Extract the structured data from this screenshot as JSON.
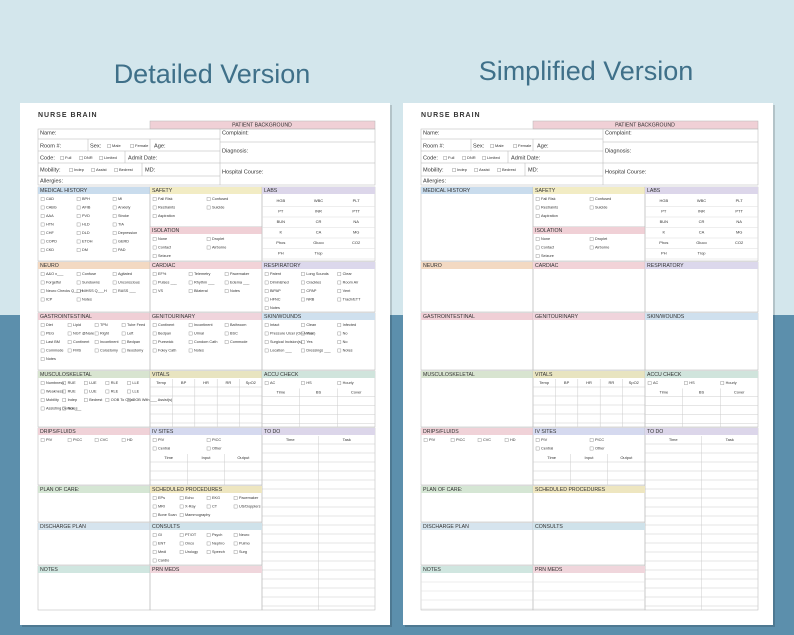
{
  "headings": [
    "Detailed Version",
    "Simplified Version"
  ],
  "pages": [
    {
      "title": "NURSE BRAIN",
      "background": {
        "header": "PATIENT BACKGROUND",
        "fields": [
          "Name:",
          "Complaint:",
          "Room #:",
          "Sex:",
          "Male",
          "Female",
          "Age:",
          "Diagnosis:",
          "Code:",
          "Full",
          "DNR",
          "Limited",
          "Admit Date:",
          "Mobility:",
          "Indep",
          "Assist",
          "Bedrest",
          "MD:",
          "Hospital Course:",
          "Allergies:"
        ]
      },
      "sections": [
        {
          "label": "MEDICAL HISTORY",
          "color": "#c9dced",
          "options": [
            "CAD",
            "BPH",
            "MI",
            "CABG",
            "AFIB",
            "Anxiety",
            "AAA",
            "PVD",
            "Stroke",
            "HTN",
            "HLD",
            "TIA",
            "CHF",
            "DLD",
            "Depression",
            "COPD",
            "ETOH",
            "GERD",
            "CKD",
            "DM",
            "PAD"
          ]
        },
        {
          "label": "SAFETY",
          "color": "#f2ecc4",
          "options": [
            "Fall Risk",
            "Confused",
            "Restraints",
            "Suicide",
            "Aspiration"
          ]
        },
        {
          "label": "ISOLATION",
          "color": "#f0d0d6",
          "options": [
            "None",
            "Droplet",
            "Contact",
            "Airborne",
            "Seizure"
          ]
        },
        {
          "label": "LABS",
          "color": "#dcd6ea",
          "cells": [
            "HGB",
            "WBC",
            "PLT",
            "PT",
            "INR",
            "PTT",
            "BUN",
            "CR",
            "NA",
            "K",
            "CA",
            "MG",
            "Phos",
            "Gluco",
            "CO2",
            "PH",
            "Trop"
          ]
        },
        {
          "label": "NEURO",
          "color": "#f3d9c2",
          "options": [
            "A&O x___",
            "Confuse",
            "Agitated",
            "Forgetful",
            "Sundowns",
            "Unconscious",
            "Neuro Checks Q___H",
            "NIHSS Q___H",
            "RASS ___",
            "ICP",
            "Notes"
          ]
        },
        {
          "label": "CARDIAC",
          "color": "#f2d3d8",
          "options": [
            "EF%",
            "Telemetry",
            "Pacemaker",
            "Pulses ___",
            "Rhythm ___",
            "Edema ___",
            "VS",
            "Bilateral",
            "Notes"
          ]
        },
        {
          "label": "RESPIRATORY",
          "color": "#dcd8ec",
          "options": [
            "Patent",
            "Long Sounds",
            "Clear",
            "Diminished",
            "Crackles",
            "Room Air",
            "BiPAP",
            "CPAP",
            "Vent",
            "HFNC",
            "NRB",
            "Trach/ETT",
            "Notes"
          ]
        },
        {
          "label": "GASTROINTESTINAL",
          "color": "#f0cfd6",
          "options": [
            "Diet",
            "Lipid",
            "TPN",
            "Tube Feed",
            "PEG",
            "NGT @Nare",
            "Right",
            "Left",
            "Last BM",
            "Continent",
            "Incontinent",
            "Bedpan",
            "Commode",
            "FMS",
            "Colostomy",
            "Ileostomy",
            "Notes"
          ]
        },
        {
          "label": "GENITOURINARY",
          "color": "#f0d4dc",
          "options": [
            "Continent",
            "Incontinent",
            "Bathroom",
            "Bedpan",
            "Urinal",
            "BSC",
            "Purewick",
            "Condom Cath",
            "Commode",
            "Foley Cath",
            "Notes"
          ]
        },
        {
          "label": "SKIN/WOUNDS",
          "color": "#cfe0ee",
          "options": [
            "Intact",
            "Clean",
            "Infected",
            "Pressure Ulcer (On Arrival)",
            "Yes",
            "No",
            "Surgical Incision(s)",
            "Yes",
            "No",
            "Location ___",
            "Dressings ___",
            "Notes"
          ]
        },
        {
          "label": "MUSCULOSKELETAL",
          "color": "#d8e4d0",
          "options": [
            "Numbness",
            "RUE",
            "LUE",
            "RLE",
            "LLE",
            "Weakness",
            "RUE",
            "LUE",
            "RLE",
            "LLE",
            "Mobility",
            "Indep",
            "Bedrest",
            "OOB To Chair",
            "OOB With ___ Assist(s)",
            "Assisting Device ___",
            "Notes"
          ]
        },
        {
          "label": "VITALS",
          "color": "#e8e4c0",
          "columns": [
            "Temp",
            "BP",
            "HR",
            "RR",
            "SpO2"
          ]
        },
        {
          "label": "ACCU CHECK",
          "color": "#d0e4dc",
          "options": [
            "AC",
            "HS",
            "Hourly"
          ],
          "columns": [
            "Time",
            "BS",
            "Cover"
          ]
        },
        {
          "label": "DRIPS/FLUIDS",
          "color": "#f0d2d8",
          "options": [
            "PIV",
            "PICC",
            "CVC",
            "HD"
          ]
        },
        {
          "label": "IV SITES",
          "color": "#d5d9ef",
          "options": [
            "PIV",
            "PICC",
            "Central",
            "Other"
          ],
          "columns": [
            "Time",
            "Input",
            "Output"
          ]
        },
        {
          "label": "TO DO",
          "color": "#dcd6ea",
          "columns": [
            "Time",
            "Task"
          ]
        },
        {
          "label": "PLAN OF CARE:",
          "color": "#d5e6d4"
        },
        {
          "label": "SCHEDULED PROCEDURES",
          "color": "#eee6c0",
          "options": [
            "EPs",
            "Echo",
            "EKG",
            "Pacemaker",
            "MRI",
            "X-Ray",
            "CT",
            "US/Dopplers",
            "Bone Scan",
            "Mammography"
          ]
        },
        {
          "label": "DISCHARGE PLAN",
          "color": "#d6e4ee"
        },
        {
          "label": "CONSULTS",
          "color": "#cfe2ea",
          "options": [
            "GI",
            "PT/OT",
            "Psych",
            "Neuro",
            "ENT",
            "Onco",
            "Nephro",
            "Pulmo",
            "Medi",
            "Urology",
            "Speech",
            "Surg",
            "Cardio"
          ]
        },
        {
          "label": "NOTES",
          "color": "#d0e6e0"
        },
        {
          "label": "PRN MEDS",
          "color": "#f0d6dc"
        }
      ]
    },
    {
      "title": "NURSE BRAIN",
      "background": {
        "header": "PATIENT BACKGROUND",
        "fields": [
          "Name:",
          "Complaint:",
          "Room #:",
          "Sex:",
          "Male",
          "Female",
          "Age:",
          "Diagnosis:",
          "Code:",
          "Full",
          "DNR",
          "Limited",
          "Admit Date:",
          "Mobility:",
          "Indep",
          "Assist",
          "Bedrest",
          "MD:",
          "Hospital Course:",
          "Allergies:"
        ]
      },
      "sections": [
        {
          "label": "MEDICAL HISTORY",
          "color": "#c9dced"
        },
        {
          "label": "SAFETY",
          "color": "#f2ecc4",
          "options": [
            "Fall Risk",
            "Confused",
            "Restraints",
            "Suicide",
            "Aspiration"
          ]
        },
        {
          "label": "ISOLATION",
          "color": "#f0d0d6",
          "options": [
            "None",
            "Droplet",
            "Contact",
            "Airborne",
            "Seizure"
          ]
        },
        {
          "label": "LABS",
          "color": "#dcd6ea",
          "cells": [
            "HGB",
            "WBC",
            "PLT",
            "PT",
            "INR",
            "PTT",
            "BUN",
            "CR",
            "NA",
            "K",
            "CA",
            "MG",
            "Phos",
            "Gluco",
            "CO2",
            "PH",
            "Trop"
          ]
        },
        {
          "label": "NEURO",
          "color": "#f3d9c2"
        },
        {
          "label": "CARDIAC",
          "color": "#f2d3d8"
        },
        {
          "label": "RESPIRATORY",
          "color": "#dcd8ec"
        },
        {
          "label": "GASTROINTESTINAL",
          "color": "#f0cfd6"
        },
        {
          "label": "GENITOURINARY",
          "color": "#f0d4dc"
        },
        {
          "label": "SKIN/WOUNDS",
          "color": "#cfe0ee"
        },
        {
          "label": "MUSCULOSKELETAL",
          "color": "#d8e4d0"
        },
        {
          "label": "VITALS",
          "color": "#e8e4c0",
          "columns": [
            "Temp",
            "BP",
            "HR",
            "RR",
            "SpO2"
          ]
        },
        {
          "label": "ACCU CHECK",
          "color": "#d0e4dc",
          "options": [
            "AC",
            "HS",
            "Hourly"
          ],
          "columns": [
            "Time",
            "BS",
            "Cover"
          ]
        },
        {
          "label": "DRIPS/FLUIDS",
          "color": "#f0d2d8",
          "options": [
            "PIV",
            "PICC",
            "CVC",
            "HD"
          ]
        },
        {
          "label": "IV SITES",
          "color": "#d5d9ef",
          "options": [
            "PIV",
            "PICC",
            "Central",
            "Other"
          ],
          "columns": [
            "Time",
            "Input",
            "Output"
          ]
        },
        {
          "label": "TO DO",
          "color": "#dcd6ea",
          "columns": [
            "Time",
            "Task"
          ]
        },
        {
          "label": "PLAN OF CARE:",
          "color": "#d5e6d4"
        },
        {
          "label": "SCHEDULED PROCEDURES",
          "color": "#eee6c0"
        },
        {
          "label": "DISCHARGE PLAN",
          "color": "#d6e4ee"
        },
        {
          "label": "CONSULTS",
          "color": "#cfe2ea"
        },
        {
          "label": "NOTES",
          "color": "#d0e6e0"
        },
        {
          "label": "PRN MEDS",
          "color": "#f0d6dc"
        }
      ]
    }
  ]
}
